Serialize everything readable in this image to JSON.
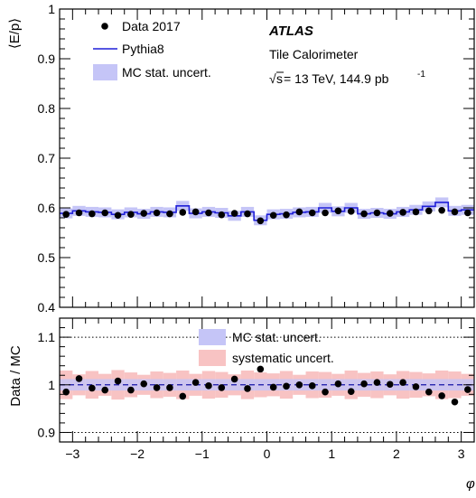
{
  "chart_data": [
    {
      "type": "line",
      "panel": "main",
      "ylabel": "⟨E/p⟩",
      "xlim": [
        -3.2,
        3.2
      ],
      "ylim": [
        0.4,
        1.0
      ],
      "yticks": [
        0.4,
        0.5,
        0.6,
        0.7,
        0.8,
        0.9,
        1
      ],
      "ytick_labels": [
        "0.4",
        "0.5",
        "0.6",
        "0.7",
        "0.8",
        "0.9",
        "1"
      ],
      "n_bins": 32,
      "series": [
        {
          "name": "Data 2017",
          "style": "markers",
          "values": [
            0.587,
            0.59,
            0.588,
            0.59,
            0.585,
            0.587,
            0.589,
            0.59,
            0.588,
            0.591,
            0.592,
            0.59,
            0.586,
            0.589,
            0.588,
            0.574,
            0.585,
            0.586,
            0.592,
            0.59,
            0.59,
            0.594,
            0.593,
            0.588,
            0.59,
            0.589,
            0.591,
            0.592,
            0.594,
            0.595,
            0.592,
            0.59
          ]
        },
        {
          "name": "Pythia8",
          "style": "step",
          "values": [
            0.589,
            0.594,
            0.592,
            0.591,
            0.587,
            0.591,
            0.588,
            0.592,
            0.591,
            0.604,
            0.589,
            0.592,
            0.59,
            0.584,
            0.592,
            0.575,
            0.587,
            0.588,
            0.591,
            0.592,
            0.6,
            0.593,
            0.6,
            0.588,
            0.59,
            0.588,
            0.592,
            0.596,
            0.603,
            0.611,
            0.594,
            0.596
          ]
        },
        {
          "name": "MC stat. uncert.",
          "style": "band",
          "halfwidth": 0.01
        }
      ]
    },
    {
      "type": "line",
      "panel": "ratio",
      "xlabel": "φ",
      "ylabel": "Data / MC",
      "xlim": [
        -3.2,
        3.2
      ],
      "ylim": [
        0.88,
        1.14
      ],
      "xticks": [
        -3,
        -2,
        -1,
        0,
        1,
        2,
        3
      ],
      "xtick_labels": [
        "−3",
        "−2",
        "−1",
        "0",
        "1",
        "2",
        "3"
      ],
      "yticks": [
        0.9,
        1,
        1.1
      ],
      "ytick_labels": [
        "0.9",
        "1",
        "1.1"
      ],
      "reference_lines": [
        0.9,
        1.0,
        1.1
      ],
      "series": [
        {
          "name": "Data / MC",
          "style": "markers",
          "values": [
            0.985,
            1.013,
            0.993,
            0.989,
            1.008,
            0.989,
            1.002,
            0.994,
            0.994,
            0.976,
            1.005,
            0.998,
            0.994,
            1.012,
            0.992,
            1.033,
            0.995,
            0.997,
            1.0,
            0.998,
            0.985,
            1.002,
            0.986,
            1.002,
            1.005,
            1.001,
            1.005,
            0.996,
            0.985,
            0.977,
            0.964,
            0.99
          ]
        },
        {
          "name": "MC stat. uncert.",
          "style": "band",
          "halfwidth": 0.012
        },
        {
          "name": "systematic uncert.",
          "style": "band",
          "halfwidth": 0.025
        }
      ]
    }
  ],
  "legend_main": {
    "data": "Data 2017",
    "mc": "Pythia8",
    "mcstat": "MC stat. uncert."
  },
  "legend_ratio": {
    "mcstat": "MC stat. uncert.",
    "syst": "systematic uncert."
  },
  "atlas_label": "ATLAS",
  "info": {
    "detector": "Tile Calorimeter",
    "energy": "s",
    "lumi_prefix": " = 13 TeV, 144.9 pb",
    "lumi_exponent": "-1"
  },
  "colors": {
    "mc_line": "#1f1fd8",
    "mc_stat_band": "#c5c5f7",
    "syst_band": "#f8c3c3",
    "data": "#000000",
    "ref_line": "#1414a8"
  }
}
